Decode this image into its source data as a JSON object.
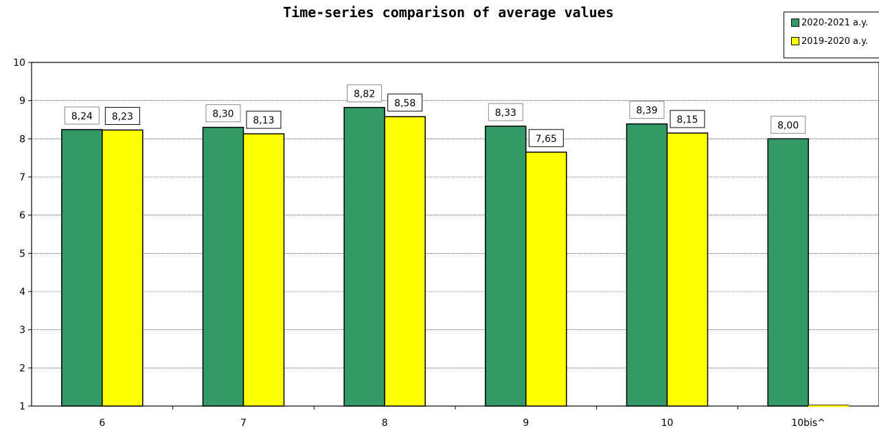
{
  "chart_data": {
    "type": "bar",
    "title": "Time-series comparison of average values",
    "categories": [
      "6",
      "7",
      "8",
      "9",
      "10",
      "10bis^"
    ],
    "series": [
      {
        "name": "2020-2021 a.y.",
        "color": "#339966",
        "values": [
          8.24,
          8.3,
          8.82,
          8.33,
          8.39,
          8.0
        ],
        "labels": [
          "8,24",
          "8,30",
          "8,82",
          "8,33",
          "8,39",
          "8,00"
        ]
      },
      {
        "name": "2019-2020 a.y.",
        "color": "#ffff00",
        "values": [
          8.23,
          8.13,
          8.58,
          7.65,
          8.15,
          null
        ],
        "labels": [
          "8,23",
          "8,13",
          "8,58",
          "7,65",
          "8,15",
          ""
        ]
      }
    ],
    "y_ticks": [
      "1",
      "2",
      "3",
      "4",
      "5",
      "6",
      "7",
      "8",
      "9",
      "10"
    ],
    "ylim": [
      1,
      10
    ],
    "grid": true,
    "legend_position": "top-right"
  }
}
